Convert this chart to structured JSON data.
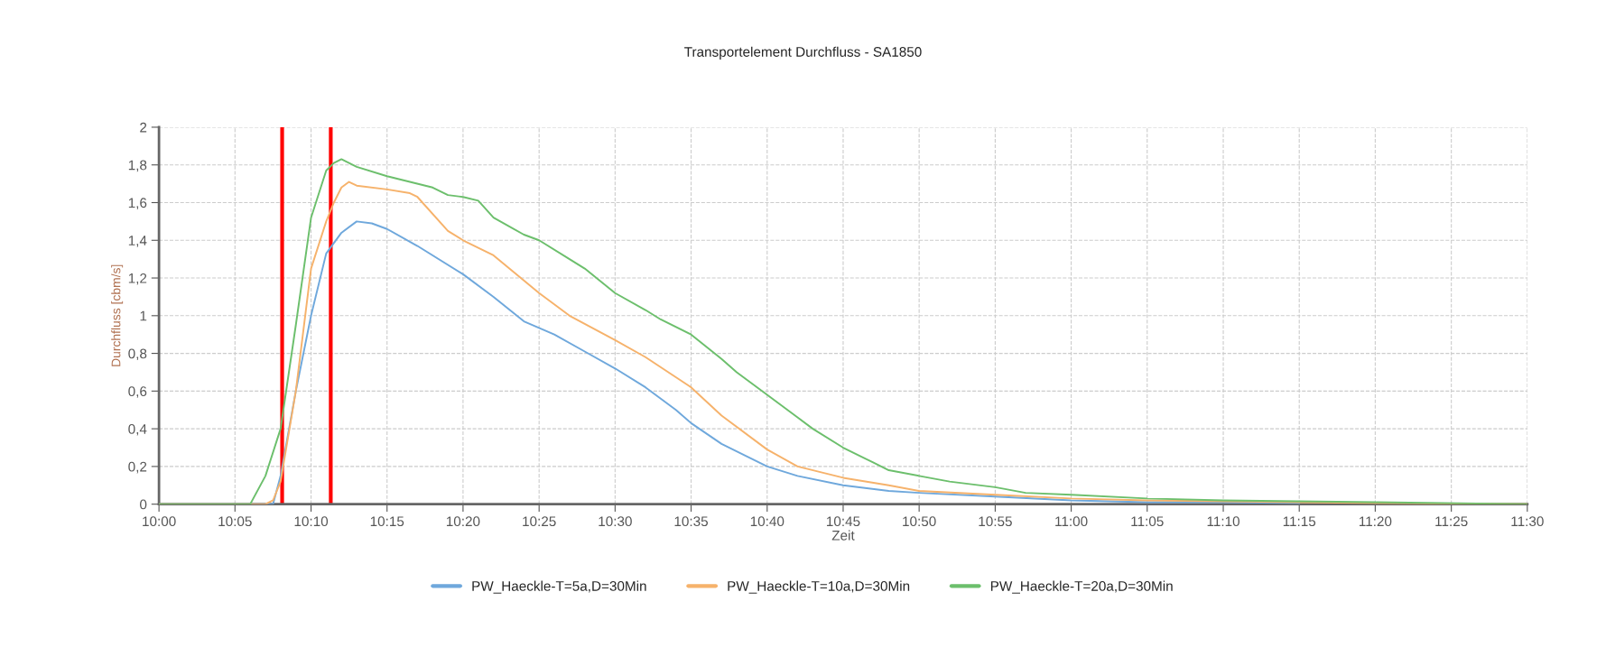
{
  "chart_data": {
    "type": "line",
    "title": "Transportelement Durchfluss - SA1850",
    "xlabel": "Zeit",
    "ylabel": "Durchfluss [cbm/s]",
    "xlim": [
      10,
      11.5
    ],
    "xticks": [
      {
        "value": 10,
        "label": "10:00"
      },
      {
        "value": 10.0833,
        "label": "10:05"
      },
      {
        "value": 10.1667,
        "label": "10:10"
      },
      {
        "value": 10.25,
        "label": "10:15"
      },
      {
        "value": 10.3333,
        "label": "10:20"
      },
      {
        "value": 10.4167,
        "label": "10:25"
      },
      {
        "value": 10.5,
        "label": "10:30"
      },
      {
        "value": 10.5833,
        "label": "10:35"
      },
      {
        "value": 10.6667,
        "label": "10:40"
      },
      {
        "value": 10.75,
        "label": "10:45"
      },
      {
        "value": 10.8333,
        "label": "10:50"
      },
      {
        "value": 10.9167,
        "label": "10:55"
      },
      {
        "value": 11,
        "label": "11:00"
      },
      {
        "value": 11.0833,
        "label": "11:05"
      },
      {
        "value": 11.1667,
        "label": "11:10"
      },
      {
        "value": 11.25,
        "label": "11:15"
      },
      {
        "value": 11.3333,
        "label": "11:20"
      },
      {
        "value": 11.4167,
        "label": "11:25"
      },
      {
        "value": 11.5,
        "label": "11:30"
      }
    ],
    "ylim": [
      0,
      2
    ],
    "yticks": [
      0,
      {
        "value": 0.2,
        "label": "0,2"
      },
      {
        "value": 0.4,
        "label": "0,4"
      },
      {
        "value": 0.6,
        "label": "0,6"
      },
      {
        "value": 0.8,
        "label": "0,8"
      },
      1,
      {
        "value": 1.2,
        "label": "1,2"
      },
      {
        "value": 1.4,
        "label": "1,4"
      },
      {
        "value": 1.6,
        "label": "1,6"
      },
      {
        "value": 1.8,
        "label": "1,8"
      },
      2
    ],
    "grid": true,
    "legend": "bottom",
    "line_style": "solid",
    "ref_lines": [
      {
        "axis": "x",
        "value": 10.135,
        "color": "#ff0000"
      },
      {
        "axis": "x",
        "value": 10.1883,
        "color": "#ff0000"
      }
    ],
    "series": [
      {
        "name": "PW_Haeckle-T=5a,D=30Min",
        "color": "#6fa8dc",
        "x": [
          10,
          10.125,
          10.1333,
          10.15,
          10.1667,
          10.1833,
          10.2,
          10.2167,
          10.2333,
          10.25,
          10.2833,
          10.3333,
          10.3667,
          10.4,
          10.4333,
          10.4667,
          10.5,
          10.5333,
          10.5667,
          10.5833,
          10.6167,
          10.6667,
          10.7,
          10.75,
          10.8,
          10.8333,
          10.9167,
          11,
          11.0833,
          11.1667,
          11.25
        ],
        "values": [
          0,
          0,
          0.15,
          0.6,
          1.0,
          1.33,
          1.44,
          1.5,
          1.49,
          1.46,
          1.37,
          1.22,
          1.1,
          0.97,
          0.9,
          0.81,
          0.72,
          0.62,
          0.5,
          0.43,
          0.32,
          0.2,
          0.15,
          0.1,
          0.07,
          0.06,
          0.04,
          0.02,
          0.01,
          0.01,
          0.005
        ]
      },
      {
        "name": "PW_Haeckle-T=10a,D=30Min",
        "color": "#f6b26b",
        "x": [
          10,
          10.1167,
          10.125,
          10.1333,
          10.15,
          10.1667,
          10.1833,
          10.1917,
          10.2,
          10.2083,
          10.2167,
          10.25,
          10.275,
          10.2833,
          10.3167,
          10.3333,
          10.3667,
          10.4167,
          10.45,
          10.5,
          10.5333,
          10.5833,
          10.6167,
          10.6667,
          10.7,
          10.75,
          10.8,
          10.8333,
          10.9167,
          11,
          11.0833,
          11.1667,
          11.25,
          11.3333,
          11.5
        ],
        "values": [
          0,
          0,
          0.02,
          0.12,
          0.6,
          1.25,
          1.5,
          1.6,
          1.68,
          1.71,
          1.69,
          1.67,
          1.65,
          1.63,
          1.45,
          1.4,
          1.32,
          1.12,
          1.0,
          0.87,
          0.78,
          0.62,
          0.47,
          0.29,
          0.2,
          0.14,
          0.1,
          0.07,
          0.05,
          0.03,
          0.02,
          0.015,
          0.01,
          0.005,
          0
        ]
      },
      {
        "name": "PW_Haeckle-T=20a,D=30Min",
        "color": "#6cbf6c",
        "x": [
          10,
          10.1,
          10.1167,
          10.1333,
          10.15,
          10.1667,
          10.1833,
          10.1917,
          10.2,
          10.2167,
          10.25,
          10.3,
          10.3167,
          10.3333,
          10.35,
          10.3667,
          10.4,
          10.4167,
          10.45,
          10.4667,
          10.5,
          10.5333,
          10.55,
          10.5833,
          10.6167,
          10.6333,
          10.6667,
          10.7,
          10.7167,
          10.75,
          10.7833,
          10.8,
          10.8333,
          10.8667,
          10.9167,
          10.95,
          11,
          11.0833,
          11.1667,
          11.25,
          11.3333,
          11.5
        ],
        "values": [
          0,
          0,
          0.15,
          0.4,
          0.95,
          1.52,
          1.77,
          1.81,
          1.83,
          1.79,
          1.74,
          1.68,
          1.64,
          1.63,
          1.61,
          1.52,
          1.43,
          1.4,
          1.3,
          1.25,
          1.12,
          1.03,
          0.98,
          0.9,
          0.77,
          0.7,
          0.58,
          0.46,
          0.4,
          0.3,
          0.22,
          0.18,
          0.15,
          0.12,
          0.09,
          0.06,
          0.05,
          0.03,
          0.02,
          0.015,
          0.01,
          0
        ]
      }
    ]
  }
}
